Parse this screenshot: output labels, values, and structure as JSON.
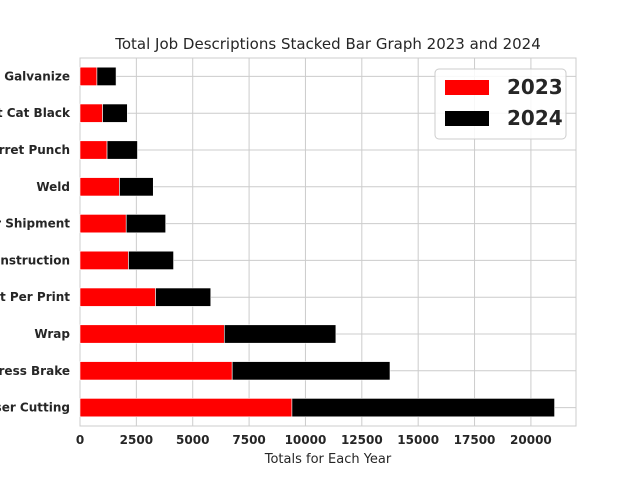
{
  "chart_data": {
    "type": "bar",
    "orientation": "horizontal",
    "stacked": true,
    "title": "Total Job Descriptions Stacked Bar Graph 2023 and 2024",
    "xlabel": "Totals for Each Year",
    "ylabel": "",
    "xlim": [
      0,
      22000
    ],
    "xticks": [
      0,
      2500,
      5000,
      7500,
      10000,
      12500,
      15000,
      17500,
      20000
    ],
    "xtick_labels": [
      "0",
      "2500",
      "5000",
      "7500",
      "10000",
      "12500",
      "15000",
      "17500",
      "20000"
    ],
    "grid": true,
    "legend_position": "top-right",
    "categories": [
      "o Galvanize",
      "t Cat Black",
      "rret Punch",
      "Weld",
      "r Shipment",
      "Instruction",
      "ut Per Print",
      "Wrap",
      "ress Brake",
      "ser Cutting"
    ],
    "series": [
      {
        "name": "2023",
        "color": "#ff0000",
        "values": [
          750,
          1000,
          1200,
          1750,
          2050,
          2150,
          3350,
          6400,
          6750,
          9400
        ]
      },
      {
        "name": "2024",
        "color": "#000000",
        "values": [
          850,
          1100,
          1350,
          1500,
          1750,
          2000,
          2450,
          4950,
          7000,
          11650
        ]
      }
    ]
  }
}
